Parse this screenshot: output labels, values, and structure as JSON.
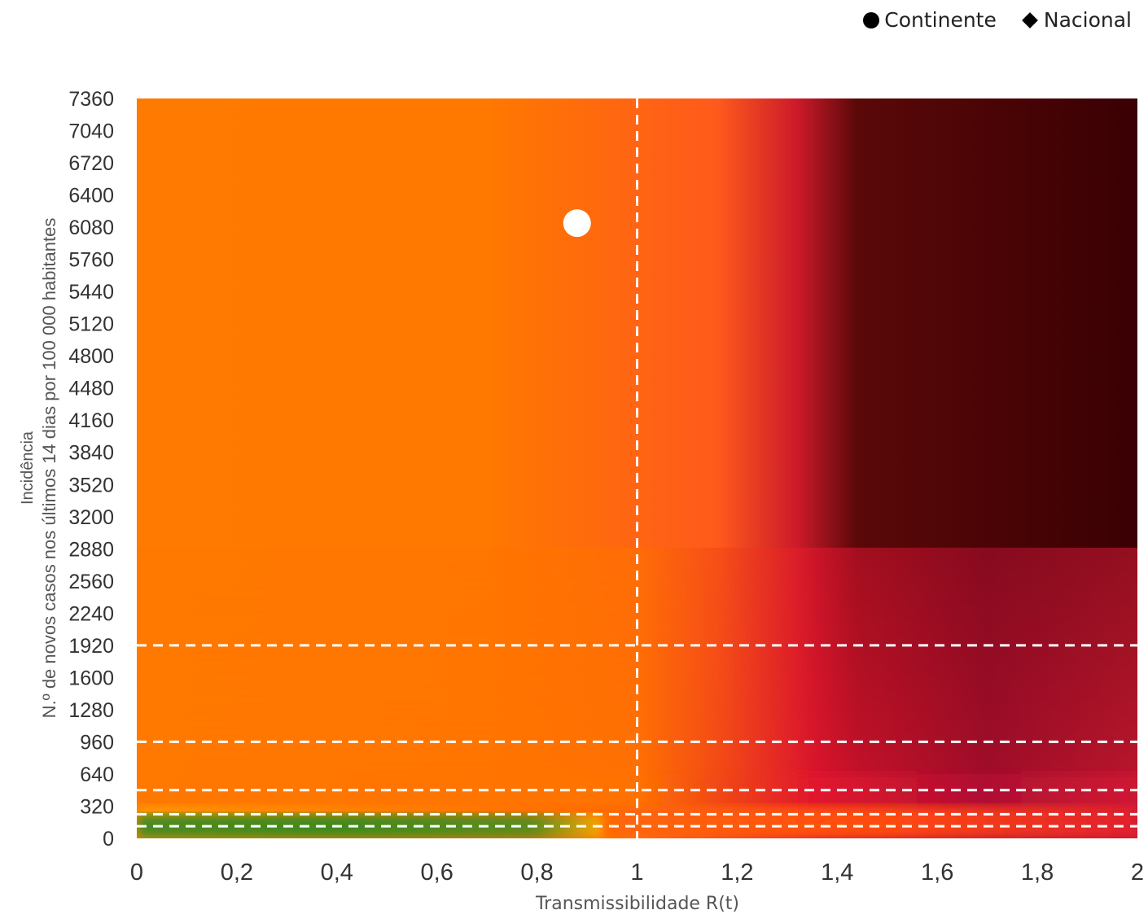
{
  "legend": {
    "items": [
      {
        "label": "Continente",
        "marker": "circle"
      },
      {
        "label": "Nacional",
        "marker": "diamond"
      }
    ]
  },
  "chart_data": {
    "type": "scatter",
    "title": "",
    "xlabel": "Transmissibilidade R(t)",
    "ylabel_line1": "Incidência",
    "ylabel_line2": "N.º de novos casos nos últimos 14 dias por 100 000 habitantes",
    "xlim": [
      0,
      2
    ],
    "ylim": [
      0,
      7360
    ],
    "x_ticks": [
      "0",
      "0,2",
      "0,4",
      "0,6",
      "0,8",
      "1",
      "1,2",
      "1,4",
      "1,6",
      "1,8",
      "2"
    ],
    "y_ticks": [
      "0",
      "320",
      "640",
      "960",
      "1280",
      "1600",
      "1920",
      "2240",
      "2560",
      "2880",
      "3200",
      "3520",
      "3840",
      "4160",
      "4480",
      "4800",
      "5120",
      "5440",
      "5760",
      "6080",
      "6400",
      "6720",
      "7040",
      "7360"
    ],
    "reference_lines": {
      "vertical_x": [
        1
      ],
      "horizontal_y": [
        120,
        240,
        480,
        960,
        1920
      ]
    },
    "background": "heatmap risk matrix (green low incidence/low R, orange R<1, dark red R>1)",
    "series": [
      {
        "name": "Continente",
        "marker": "circle",
        "x": 0.88,
        "y": 6120
      },
      {
        "name": "Nacional",
        "marker": "diamond",
        "x": 0.88,
        "y": 6100
      }
    ]
  }
}
